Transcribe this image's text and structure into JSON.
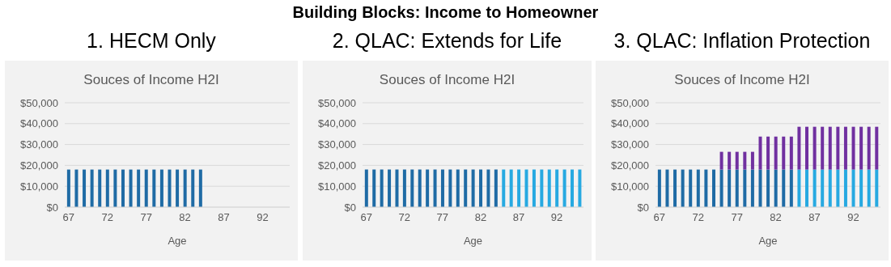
{
  "chart_data": [
    {
      "type": "bar",
      "annotations": [
        "Building Blocks: Income to Homeowner"
      ],
      "title": "1. HECM Only",
      "subtitle": "Souces of Income H2I",
      "xlabel": "Age",
      "stacked": true,
      "grid": "y",
      "categories": [
        "67",
        null,
        null,
        null,
        null,
        "72",
        null,
        null,
        null,
        null,
        "77",
        null,
        null,
        null,
        null,
        "82",
        null,
        null,
        null,
        null,
        "87",
        null,
        null,
        null,
        null,
        "92",
        null,
        null,
        null
      ],
      "ylim": [
        0,
        50000
      ],
      "yticks": [
        {
          "value": 0,
          "label": "$0"
        },
        {
          "value": 10000,
          "label": "$10,000"
        },
        {
          "value": 20000,
          "label": "$20,000"
        },
        {
          "value": 30000,
          "label": "$30,000"
        },
        {
          "value": 40000,
          "label": "$40,000"
        },
        {
          "value": 50000,
          "label": "$50,000"
        }
      ],
      "series": [
        {
          "color": "#1f6ba5",
          "values": [
            18000,
            18000,
            18000,
            18000,
            18000,
            18000,
            18000,
            18000,
            18000,
            18000,
            18000,
            18000,
            18000,
            18000,
            18000,
            18000,
            18000,
            18000,
            null,
            null,
            null,
            null,
            null,
            null,
            null,
            null,
            null,
            null,
            null
          ]
        }
      ]
    },
    {
      "type": "bar",
      "title": "2. QLAC: Extends for Life",
      "subtitle": "Souces of Income H2I",
      "xlabel": "Age",
      "stacked": true,
      "grid": "y",
      "categories": [
        "67",
        null,
        null,
        null,
        null,
        "72",
        null,
        null,
        null,
        null,
        "77",
        null,
        null,
        null,
        null,
        "82",
        null,
        null,
        null,
        null,
        "87",
        null,
        null,
        null,
        null,
        "92",
        null,
        null,
        null
      ],
      "ylim": [
        0,
        50000
      ],
      "yticks": [
        {
          "value": 0,
          "label": "$0"
        },
        {
          "value": 10000,
          "label": "$10,000"
        },
        {
          "value": 20000,
          "label": "$20,000"
        },
        {
          "value": 30000,
          "label": "$30,000"
        },
        {
          "value": 40000,
          "label": "$40,000"
        },
        {
          "value": 50000,
          "label": "$50,000"
        }
      ],
      "series": [
        {
          "color": "#1f6ba5",
          "values": [
            18000,
            18000,
            18000,
            18000,
            18000,
            18000,
            18000,
            18000,
            18000,
            18000,
            18000,
            18000,
            18000,
            18000,
            18000,
            18000,
            18000,
            18000,
            null,
            null,
            null,
            null,
            null,
            null,
            null,
            null,
            null,
            null,
            null
          ]
        },
        {
          "color": "#27a9e1",
          "values": [
            null,
            null,
            null,
            null,
            null,
            null,
            null,
            null,
            null,
            null,
            null,
            null,
            null,
            null,
            null,
            null,
            null,
            null,
            18000,
            18000,
            18000,
            18000,
            18000,
            18000,
            18000,
            18000,
            18000,
            18000,
            18000
          ]
        }
      ]
    },
    {
      "type": "bar",
      "title": "3. QLAC: Inflation Protection",
      "subtitle": "Souces of Income H2I",
      "xlabel": "Age",
      "stacked": true,
      "grid": "y",
      "categories": [
        "67",
        null,
        null,
        null,
        null,
        "72",
        null,
        null,
        null,
        null,
        "77",
        null,
        null,
        null,
        null,
        "82",
        null,
        null,
        null,
        null,
        "87",
        null,
        null,
        null,
        null,
        "92",
        null,
        null,
        null
      ],
      "ylim": [
        0,
        50000
      ],
      "yticks": [
        {
          "value": 0,
          "label": "$0"
        },
        {
          "value": 10000,
          "label": "$10,000"
        },
        {
          "value": 20000,
          "label": "$20,000"
        },
        {
          "value": 30000,
          "label": "$30,000"
        },
        {
          "value": 40000,
          "label": "$40,000"
        },
        {
          "value": 50000,
          "label": "$50,000"
        }
      ],
      "series": [
        {
          "color": "#1f6ba5",
          "values": [
            18000,
            18000,
            18000,
            18000,
            18000,
            18000,
            18000,
            18000,
            18000,
            18000,
            18000,
            18000,
            18000,
            18000,
            18000,
            18000,
            18000,
            18000,
            null,
            null,
            null,
            null,
            null,
            null,
            null,
            null,
            null,
            null,
            null
          ]
        },
        {
          "color": "#27a9e1",
          "values": [
            null,
            null,
            null,
            null,
            null,
            null,
            null,
            null,
            null,
            null,
            null,
            null,
            null,
            null,
            null,
            null,
            null,
            null,
            18000,
            18000,
            18000,
            18000,
            18000,
            18000,
            18000,
            18000,
            18000,
            18000,
            18000
          ]
        },
        {
          "color": "#7030a0",
          "values": [
            null,
            null,
            null,
            null,
            null,
            null,
            null,
            null,
            8500,
            8500,
            8500,
            8500,
            8500,
            15800,
            15800,
            15800,
            15800,
            15800,
            20500,
            20500,
            20500,
            20500,
            20500,
            20500,
            20500,
            20500,
            20500,
            20500,
            20500
          ]
        }
      ]
    }
  ]
}
